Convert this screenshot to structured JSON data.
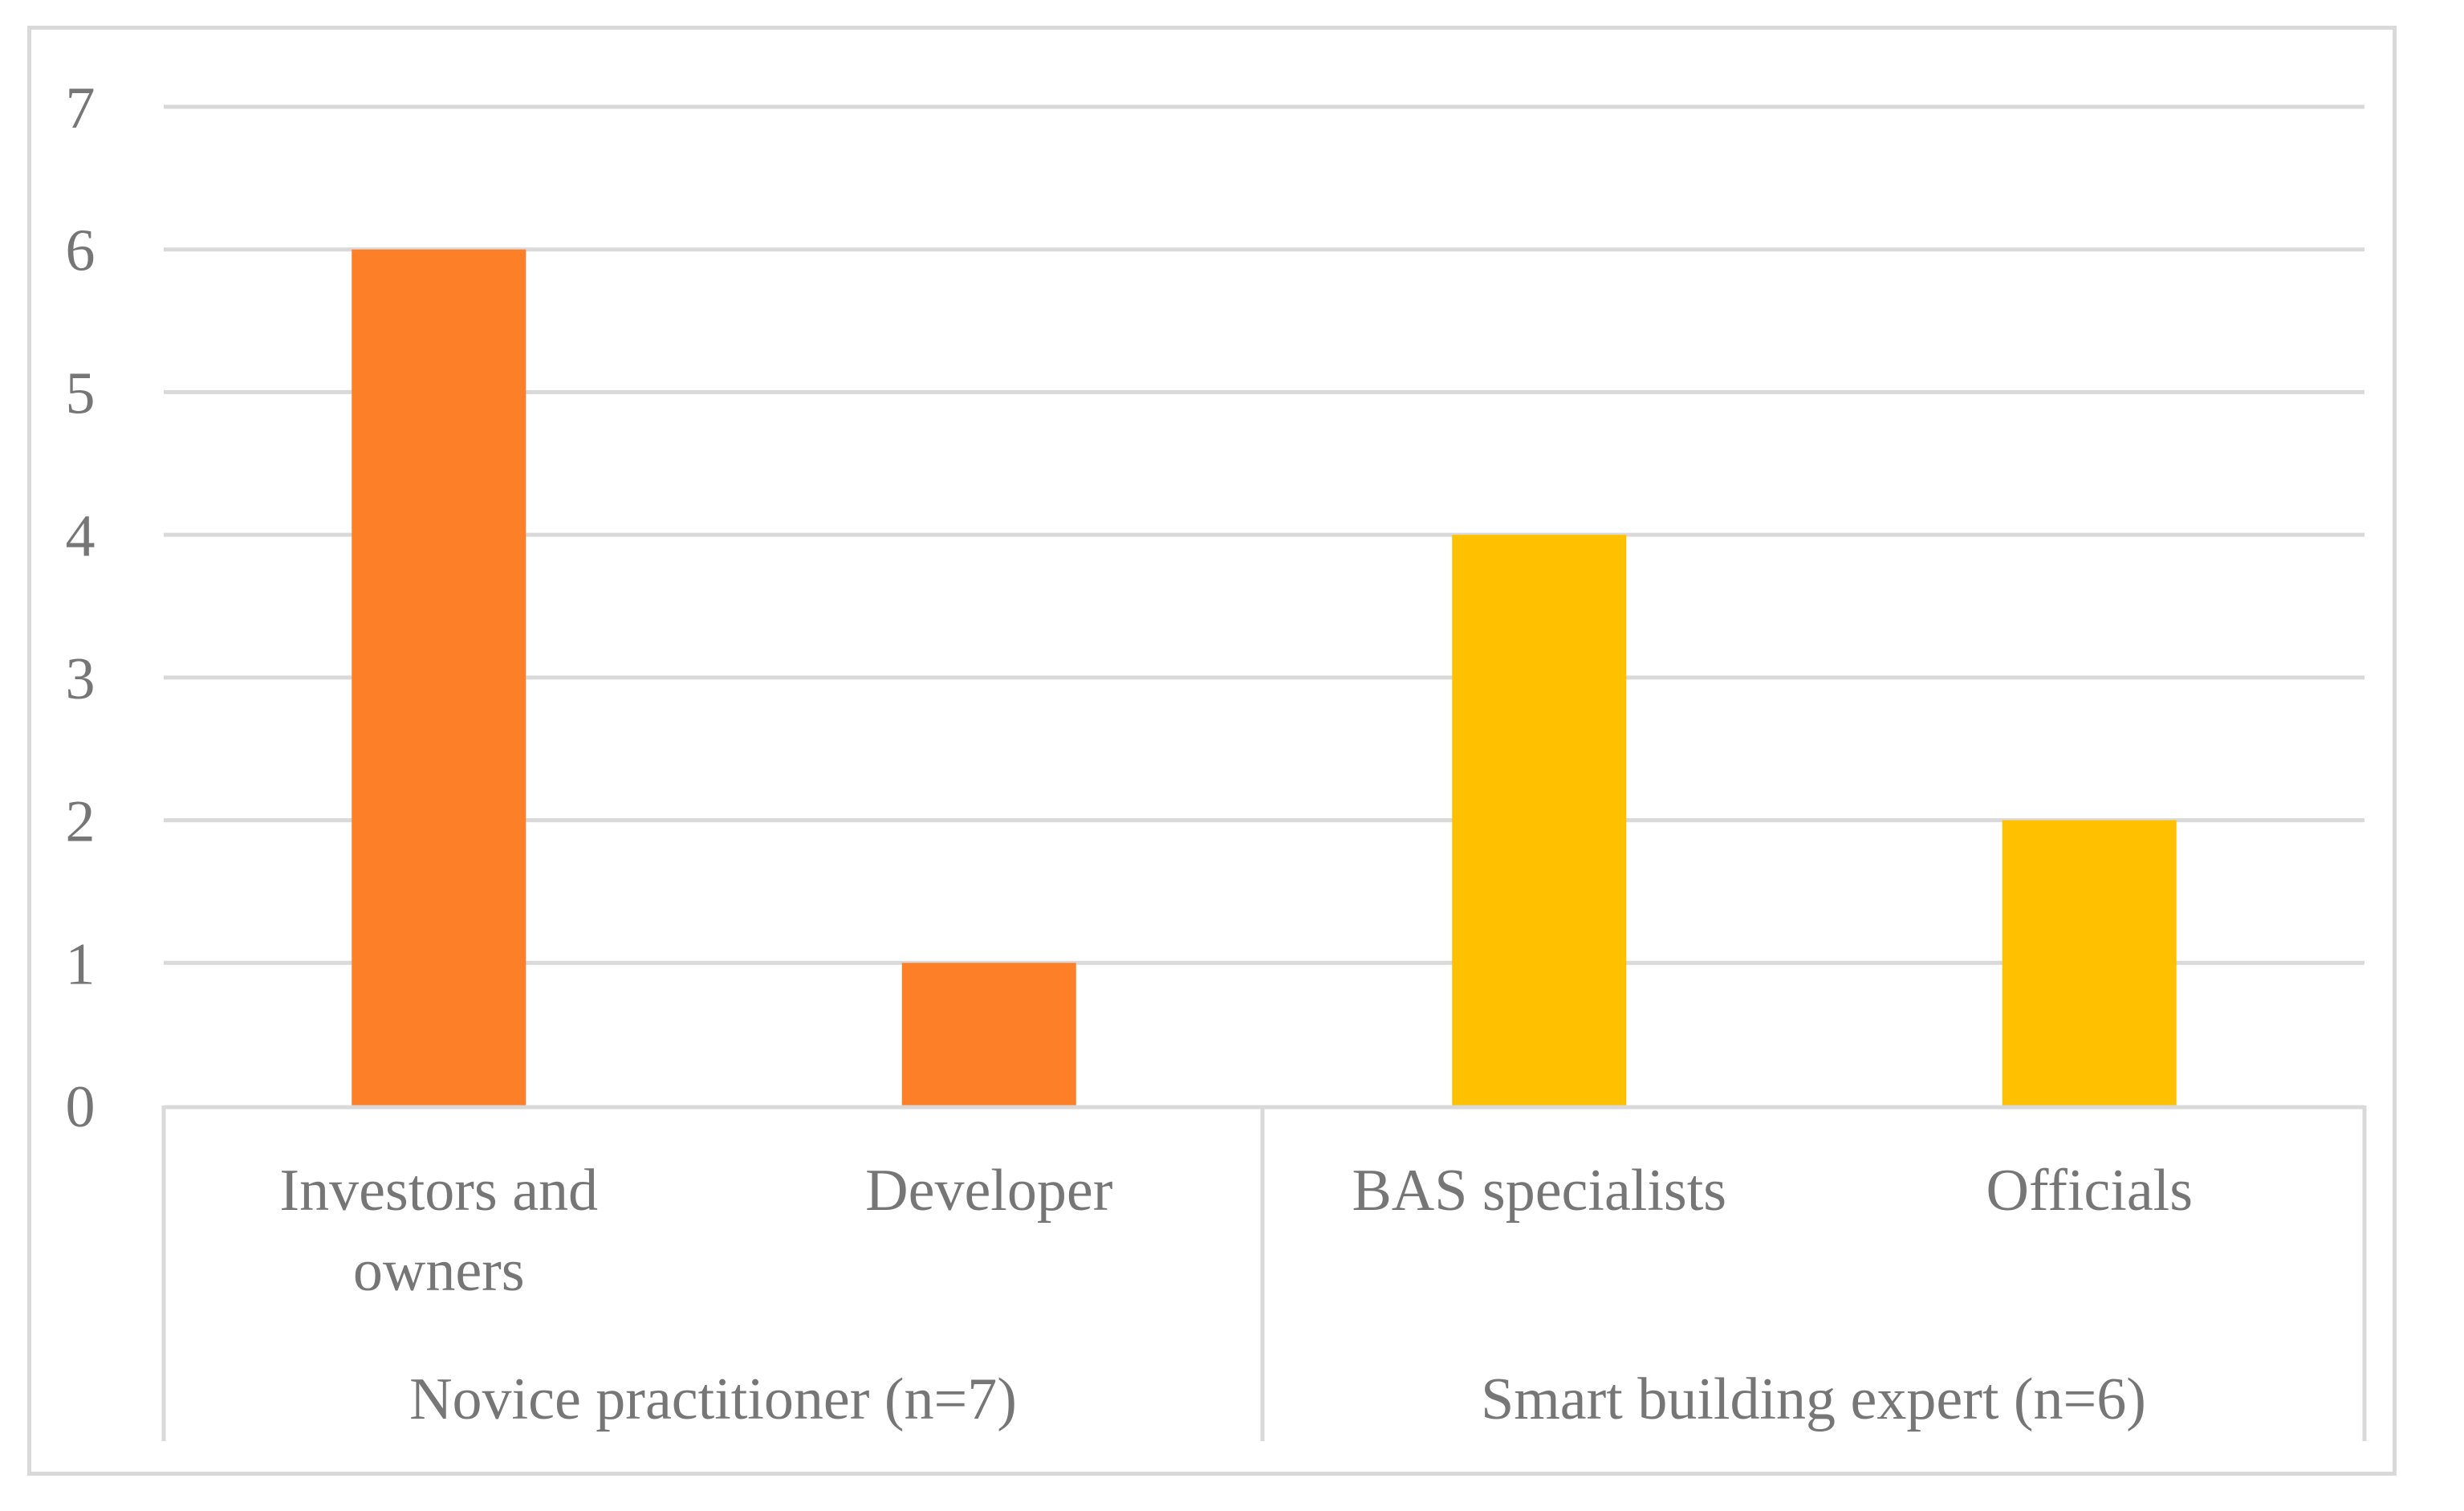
{
  "chart_data": {
    "type": "bar",
    "title": "",
    "xlabel": "",
    "ylabel": "",
    "ylim": [
      0,
      7
    ],
    "yticks": [
      0,
      1,
      2,
      3,
      4,
      5,
      6,
      7
    ],
    "grid": true,
    "legend": "none",
    "categories": [
      {
        "label_lines": [
          "Investors and",
          "owners"
        ],
        "value": 6,
        "group": 0
      },
      {
        "label_lines": [
          "Developer"
        ],
        "value": 1,
        "group": 0
      },
      {
        "label_lines": [
          "BAS specialists"
        ],
        "value": 4,
        "group": 1
      },
      {
        "label_lines": [
          "Officials"
        ],
        "value": 2,
        "group": 1
      }
    ],
    "groups": [
      {
        "label": "Novice practitioner (n=7)",
        "color": "#FD7F28"
      },
      {
        "label": "Smart building expert (n=6)",
        "color": "#FFC000"
      }
    ],
    "colors": {
      "grid": "#d9d9d9",
      "axis_text": "#767676"
    }
  }
}
